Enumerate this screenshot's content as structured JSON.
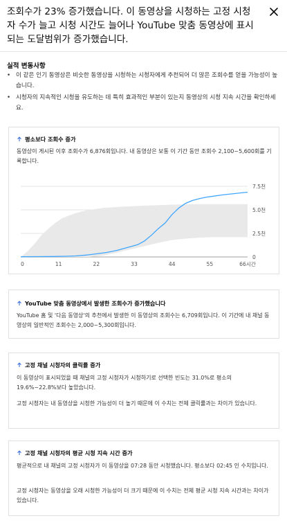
{
  "header": {
    "title": "조회수가 23% 증가했습니다. 이 동영상을 시청하는 고정 시청자 수가 늘고 시청 시간도 늘어나 YouTube 맞춤 동영상에 표시되는 도달범위가 증가했습니다.",
    "close_icon": "close-icon"
  },
  "actual_changes": {
    "title": "실적 변동사항",
    "bullets": [
      "이 같은 인기 동영상은 비슷한 동영상을 시청하는 시청자에게 추천되어 더 많은 조회수를 얻을 가능성이 높습니다.",
      "시청자의 지속적인 시청을 유도하는 데 특히 효과적인 부분이 있는지 동영상의 시청 지속 시간을 확인하세요."
    ]
  },
  "cards": [
    {
      "title": "평소보다 조회수 증가",
      "icon": "arrow-up-icon",
      "body": "동영상이 게시된 이후 조회수가 6,876회입니다. 내 동영상은 보통 이 기간 동안 조회수 2,100~5,600회를 기록합니다."
    },
    {
      "title": "YouTube 맞춤 동영상에서 발생한 조회수가 증가했습니다",
      "icon": "arrow-up-icon",
      "body": "YouTube 홈 및 '다음 동영상'의 추천에서 발생한 이 동영상의 조회수는 6,709회입니다. 이 기간에 내 채널 동영상의 일반적인 조회수는 2,000~5,300회입니다."
    },
    {
      "title": "고정 채널 시청자의 클릭률 증가",
      "icon": "arrow-up-icon",
      "body": "이 동영상이 표시되었을 때 채널의 고정 시청자가 시청하기로 선택한 빈도는 31.0%로 평소의 19.6%~22.8%보다 높았습니다.",
      "body2": "고정 시청자는 내 동영상을 시청한 가능성이 더 높기 때문에 이 수치는 전체 클릭률과는 차이가 있습니다."
    },
    {
      "title": "고정 채널 시청자의 평균 시청 지속 시간 증가",
      "icon": "arrow-up-icon",
      "body": "평균적으로 내 채널의 고정 시청자가 이 동영상을 07:28 동안 시청했습니다. 평소보다 02:45 인 수치입니다.",
      "body2": "고정 시청자는 동영상을 오래 시청한 가능성이 더 크기 때문에 이 수치는 전체 평균 시청 지속 시간과는 차이가 있습니다."
    }
  ],
  "chart_data": {
    "type": "line",
    "x_ticks": [
      "0",
      "11",
      "22",
      "33",
      "44",
      "55",
      "66시간"
    ],
    "y_ticks": [
      "0",
      "2.5천",
      "5.0천",
      "7.5천"
    ],
    "xlim": [
      0,
      66
    ],
    "ylim": [
      0,
      7500
    ],
    "line_color": "#3ea6ff",
    "band_color": "#e9e9e9",
    "series": [
      {
        "points": [
          [
            0,
            30
          ],
          [
            5,
            40
          ],
          [
            10,
            55
          ],
          [
            13,
            70
          ],
          [
            16,
            110
          ],
          [
            19,
            200
          ],
          [
            22,
            330
          ],
          [
            25,
            480
          ],
          [
            28,
            700
          ],
          [
            31,
            1000
          ],
          [
            34,
            1300
          ],
          [
            36,
            1700
          ],
          [
            38,
            2300
          ],
          [
            40,
            3000
          ],
          [
            42,
            3600
          ],
          [
            44,
            4500
          ],
          [
            46,
            5200
          ],
          [
            48,
            5700
          ],
          [
            50,
            6000
          ],
          [
            52,
            6200
          ],
          [
            54,
            6350
          ],
          [
            56,
            6450
          ],
          [
            58,
            6550
          ],
          [
            60,
            6650
          ],
          [
            62,
            6720
          ],
          [
            64,
            6800
          ],
          [
            66,
            6876
          ]
        ]
      }
    ],
    "typical_range": {
      "x": [
        0,
        2,
        4,
        6,
        8,
        10,
        12,
        14,
        16,
        18,
        20,
        22,
        24,
        26,
        28,
        30,
        33,
        36,
        40,
        44,
        48,
        52,
        56,
        60,
        64,
        66
      ],
      "low": [
        0,
        0,
        0,
        0,
        0,
        0,
        0,
        0,
        0,
        0,
        0,
        50,
        150,
        300,
        450,
        650,
        900,
        1150,
        1500,
        1800,
        1950,
        2050,
        2100,
        2100,
        2100,
        2100
      ],
      "high": [
        0,
        600,
        1400,
        2300,
        3000,
        3600,
        4100,
        4400,
        4650,
        4850,
        5000,
        5100,
        5200,
        5250,
        5300,
        5350,
        5400,
        5450,
        5500,
        5550,
        5580,
        5600,
        5600,
        5600,
        5600,
        5600
      ]
    }
  }
}
